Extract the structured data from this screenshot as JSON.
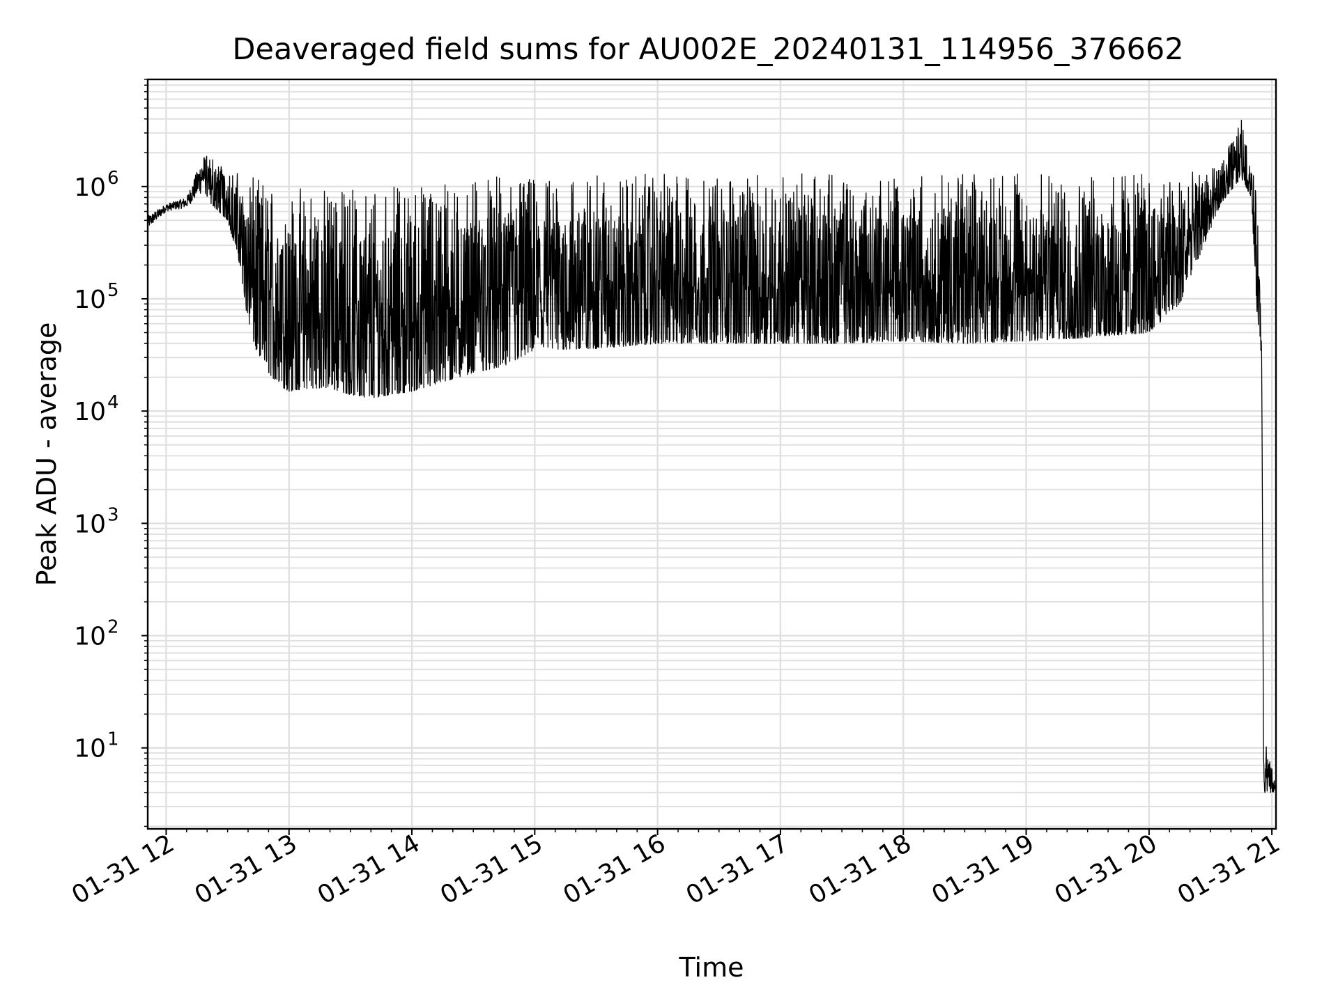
{
  "chart_data": {
    "type": "line",
    "title": "Deaveraged field sums for AU002E_20240131_114956_376662",
    "xlabel": "Time",
    "ylabel": "Peak ADU - average",
    "yscale": "log",
    "ylim": [
      1.9,
      9000000
    ],
    "xlim": [
      "2024-01-31 11:51",
      "2024-01-31 21:02"
    ],
    "grid": true,
    "grid_minor": true,
    "line_color": "#000000",
    "grid_color": "#e0e0e0",
    "x_ticks": [
      {
        "value": "2024-01-31 12:00",
        "label": "01-31 12"
      },
      {
        "value": "2024-01-31 13:00",
        "label": "01-31 13"
      },
      {
        "value": "2024-01-31 14:00",
        "label": "01-31 14"
      },
      {
        "value": "2024-01-31 15:00",
        "label": "01-31 15"
      },
      {
        "value": "2024-01-31 16:00",
        "label": "01-31 16"
      },
      {
        "value": "2024-01-31 17:00",
        "label": "01-31 17"
      },
      {
        "value": "2024-01-31 18:00",
        "label": "01-31 18"
      },
      {
        "value": "2024-01-31 19:00",
        "label": "01-31 19"
      },
      {
        "value": "2024-01-31 20:00",
        "label": "01-31 20"
      },
      {
        "value": "2024-01-31 21:00",
        "label": "01-31 21"
      }
    ],
    "y_ticks": [
      {
        "value": 10,
        "base": "10",
        "exp": "1"
      },
      {
        "value": 100,
        "base": "10",
        "exp": "2"
      },
      {
        "value": 1000,
        "base": "10",
        "exp": "3"
      },
      {
        "value": 10000,
        "base": "10",
        "exp": "4"
      },
      {
        "value": 100000,
        "base": "10",
        "exp": "5"
      },
      {
        "value": 1000000,
        "base": "10",
        "exp": "6"
      }
    ],
    "series": [
      {
        "x": [
          "2024-01-31 11:51",
          "2024-01-31 12:00",
          "2024-01-31 12:10",
          "2024-01-31 12:18",
          "2024-01-31 12:22",
          "2024-01-31 12:30",
          "2024-01-31 12:36",
          "2024-01-31 12:40",
          "2024-01-31 12:45",
          "2024-01-31 12:50",
          "2024-01-31 12:55",
          "2024-01-31 13:00",
          "2024-01-31 13:10",
          "2024-01-31 13:20",
          "2024-01-31 13:30",
          "2024-01-31 13:40",
          "2024-01-31 13:50",
          "2024-01-31 14:00",
          "2024-01-31 14:15",
          "2024-01-31 14:30",
          "2024-01-31 14:45",
          "2024-01-31 15:00",
          "2024-01-31 15:30",
          "2024-01-31 16:00",
          "2024-01-31 16:30",
          "2024-01-31 17:00",
          "2024-01-31 17:30",
          "2024-01-31 18:00",
          "2024-01-31 18:30",
          "2024-01-31 19:00",
          "2024-01-31 19:30",
          "2024-01-31 20:00",
          "2024-01-31 20:15",
          "2024-01-31 20:25",
          "2024-01-31 20:35",
          "2024-01-31 20:45",
          "2024-01-31 20:50",
          "2024-01-31 20:53",
          "2024-01-31 20:55",
          "2024-01-31 20:56",
          "2024-01-31 21:02"
        ],
        "low": [
          420000,
          600000,
          650000,
          900000,
          700000,
          500000,
          200000,
          60000,
          30000,
          22000,
          17000,
          15000,
          16000,
          16000,
          14000,
          13000,
          14000,
          15000,
          18000,
          22000,
          25000,
          35000,
          36000,
          40000,
          40000,
          40000,
          40000,
          42000,
          40000,
          42000,
          45000,
          50000,
          90000,
          250000,
          700000,
          1200000,
          800000,
          60000,
          30000,
          4,
          4
        ],
        "high": [
          550000,
          700000,
          800000,
          1900000,
          1900000,
          1500000,
          1300000,
          1200000,
          1200000,
          1100000,
          1100000,
          1050000,
          1000000,
          1000000,
          950000,
          1000000,
          1000000,
          1050000,
          1100000,
          1200000,
          1250000,
          1200000,
          1250000,
          1300000,
          1250000,
          1300000,
          1350000,
          1250000,
          1300000,
          1300000,
          1250000,
          1300000,
          1300000,
          1400000,
          1500000,
          4200000,
          1600000,
          800000,
          60000,
          15,
          4.5
        ]
      }
    ]
  }
}
